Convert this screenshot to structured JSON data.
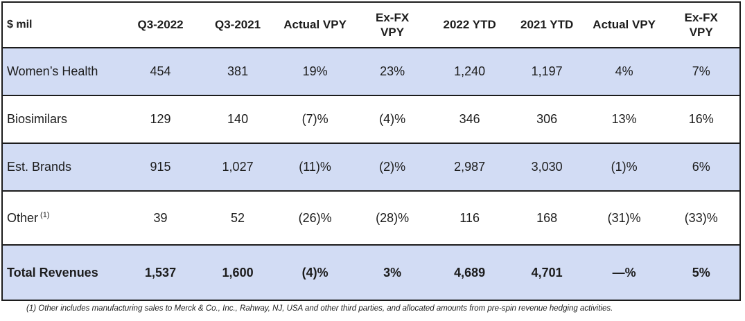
{
  "table": {
    "unit_label": "$ mil",
    "columns": [
      "Q3-2022",
      "Q3-2021",
      "Actual VPY",
      "Ex-FX\nVPY",
      "2022 YTD",
      "2021 YTD",
      "Actual VPY",
      "Ex-FX\nVPY"
    ],
    "rows": [
      {
        "label": "Women’s Health",
        "sup": "",
        "values": [
          "454",
          "381",
          "19%",
          "23%",
          "1,240",
          "1,197",
          "4%",
          "7%"
        ]
      },
      {
        "label": "Biosimilars",
        "sup": "",
        "values": [
          "129",
          "140",
          "(7)%",
          "(4)%",
          "346",
          "306",
          "13%",
          "16%"
        ]
      },
      {
        "label": "Est. Brands",
        "sup": "",
        "values": [
          "915",
          "1,027",
          "(11)%",
          "(2)%",
          "2,987",
          "3,030",
          "(1)%",
          "6%"
        ]
      },
      {
        "label": "Other",
        "sup": "(1)",
        "values": [
          "39",
          "52",
          "(26)%",
          "(28)%",
          "116",
          "168",
          "(31)%",
          "(33)%"
        ]
      },
      {
        "label": "Total Revenues",
        "sup": "",
        "values": [
          "1,537",
          "1,600",
          "(4)%",
          "3%",
          "4,689",
          "4,701",
          "—%",
          "5%"
        ]
      }
    ]
  },
  "footnote": "(1) Other includes manufacturing sales to Merck & Co., Inc., Rahway, NJ, USA and other third parties, and allocated amounts from pre-spin revenue hedging activities.",
  "colors": {
    "row_shaded": "#d2dcf4",
    "border": "#1c1c1c",
    "text": "#1c1c1c"
  }
}
